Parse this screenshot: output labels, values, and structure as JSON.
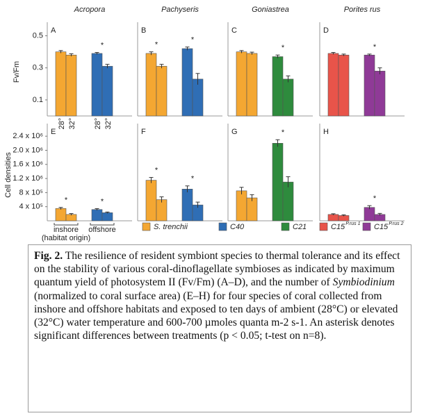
{
  "significance_mark": "*",
  "legend": [
    {
      "name": "S. trenchii",
      "color": "#f4a732"
    },
    {
      "name": "C40",
      "color": "#2f6eb5"
    },
    {
      "name": "C21",
      "color": "#2e8b3d"
    },
    {
      "name": "C15",
      "superscript": "P.rus 1",
      "color": "#e8544a"
    },
    {
      "name": "C15",
      "superscript": "P.rus 2",
      "color": "#8f3a97"
    }
  ],
  "chart_data": [
    {
      "type": "bar",
      "panel": "A",
      "title": "Acropora",
      "ylabel": "Fv/Fm",
      "ylim": [
        0,
        0.55
      ],
      "yticks": [
        0.1,
        0.3,
        0.5
      ],
      "x_labels": [
        "28°",
        "32°"
      ],
      "significant": [
        false,
        true
      ],
      "series": [
        {
          "color": "#f4a732",
          "values": [
            0.4,
            0.38
          ],
          "errors": [
            0.008,
            0.008
          ]
        },
        {
          "color": "#2f6eb5",
          "values": [
            0.39,
            0.31
          ],
          "errors": [
            0.006,
            0.012
          ]
        }
      ]
    },
    {
      "type": "bar",
      "panel": "B",
      "title": "Pachyseris",
      "ylim": [
        0,
        0.55
      ],
      "significant": [
        true,
        true
      ],
      "series": [
        {
          "color": "#f4a732",
          "values": [
            0.39,
            0.31
          ],
          "errors": [
            0.01,
            0.012
          ]
        },
        {
          "color": "#2f6eb5",
          "values": [
            0.42,
            0.23
          ],
          "errors": [
            0.01,
            0.035
          ]
        }
      ]
    },
    {
      "type": "bar",
      "panel": "C",
      "title": "Goniastrea",
      "ylim": [
        0,
        0.55
      ],
      "significant": [
        false,
        true
      ],
      "series": [
        {
          "color": "#f4a732",
          "values": [
            0.4,
            0.39
          ],
          "errors": [
            0.008,
            0.008
          ]
        },
        {
          "color": "#2e8b3d",
          "values": [
            0.37,
            0.23
          ],
          "errors": [
            0.01,
            0.02
          ]
        }
      ]
    },
    {
      "type": "bar",
      "panel": "D",
      "title": "Porites rus",
      "ylim": [
        0,
        0.55
      ],
      "significant": [
        false,
        true
      ],
      "series": [
        {
          "color": "#e8544a",
          "values": [
            0.39,
            0.38
          ],
          "errors": [
            0.006,
            0.006
          ]
        },
        {
          "color": "#8f3a97",
          "values": [
            0.38,
            0.28
          ],
          "errors": [
            0.006,
            0.02
          ]
        }
      ]
    },
    {
      "type": "bar",
      "panel": "E",
      "ylabel": "Cell densities",
      "ylim": [
        0,
        2600000
      ],
      "yticks": [
        {
          "value": 400000,
          "label": "4 x 10⁵"
        },
        {
          "value": 800000,
          "label": "8 x 10⁵"
        },
        {
          "value": 1200000,
          "label": "1.2 x 10⁶"
        },
        {
          "value": 1600000,
          "label": "1.6 x 10⁶"
        },
        {
          "value": 2000000,
          "label": "2.0 x 10⁶"
        },
        {
          "value": 2400000,
          "label": "2.4 x 10⁶"
        }
      ],
      "group_labels": [
        "inshore",
        "offshore"
      ],
      "group_note": "(habitat origin)",
      "significant": [
        true,
        true
      ],
      "series": [
        {
          "color": "#f4a732",
          "values": [
            350000,
            180000
          ],
          "errors": [
            30000,
            25000
          ]
        },
        {
          "color": "#2f6eb5",
          "values": [
            320000,
            230000
          ],
          "errors": [
            25000,
            20000
          ]
        }
      ]
    },
    {
      "type": "bar",
      "panel": "F",
      "ylim": [
        0,
        2600000
      ],
      "significant": [
        true,
        true
      ],
      "series": [
        {
          "color": "#f4a732",
          "values": [
            1150000,
            600000
          ],
          "errors": [
            80000,
            80000
          ]
        },
        {
          "color": "#2f6eb5",
          "values": [
            900000,
            450000
          ],
          "errors": [
            90000,
            80000
          ]
        }
      ]
    },
    {
      "type": "bar",
      "panel": "G",
      "ylim": [
        0,
        2600000
      ],
      "significant": [
        false,
        true
      ],
      "series": [
        {
          "color": "#f4a732",
          "values": [
            850000,
            650000
          ],
          "errors": [
            100000,
            90000
          ]
        },
        {
          "color": "#2e8b3d",
          "values": [
            2200000,
            1100000
          ],
          "errors": [
            100000,
            150000
          ]
        }
      ]
    },
    {
      "type": "bar",
      "panel": "H",
      "ylim": [
        0,
        2600000
      ],
      "significant": [
        false,
        true
      ],
      "series": [
        {
          "color": "#e8544a",
          "values": [
            180000,
            150000
          ],
          "errors": [
            20000,
            20000
          ]
        },
        {
          "color": "#8f3a97",
          "values": [
            380000,
            180000
          ],
          "errors": [
            50000,
            30000
          ]
        }
      ]
    }
  ],
  "caption": {
    "label": "Fig. 2.",
    "text_before": " The resilience of resident symbiont species to thermal tolerance and its effect on the stability of various coral-dinoflagellate symbioses as indicated by maximum quantum yield of photosystem II (Fv/Fm) (A–D), and the number of ",
    "italic": "Symbiodinium",
    "text_after": " (normalized to coral surface area) (E–H) for four species of coral collected from inshore and offshore habitats and exposed to ten days of ambient (28°C) or elevated (32°C) water temperature and 600-700 µmoles quanta m-2 s-1. An asterisk denotes significant differences between treatments (p < 0.05; t-test on n=8)."
  }
}
